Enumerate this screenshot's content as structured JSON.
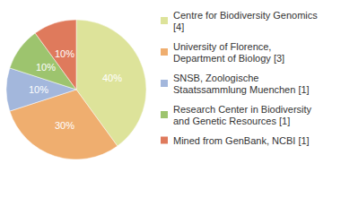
{
  "chart_data": {
    "type": "pie",
    "categories": [
      "Centre for Biodiversity Genomics [4]",
      "University of Florence, Department of Biology [3]",
      "SNSB, Zoologische Staatssammlung Muenchen [1]",
      "Research Center in Biodiversity and Genetic Resources [1]",
      "Mined from GenBank, NCBI [1]"
    ],
    "values": [
      40,
      30,
      10,
      10,
      10
    ],
    "value_labels": [
      "40%",
      "30%",
      "10%",
      "10%",
      "10%"
    ],
    "colors": [
      "#dde39a",
      "#efae6f",
      "#a3b7dc",
      "#9dc46e",
      "#df7a5c"
    ],
    "data_labels": true,
    "legend": "top-right"
  }
}
